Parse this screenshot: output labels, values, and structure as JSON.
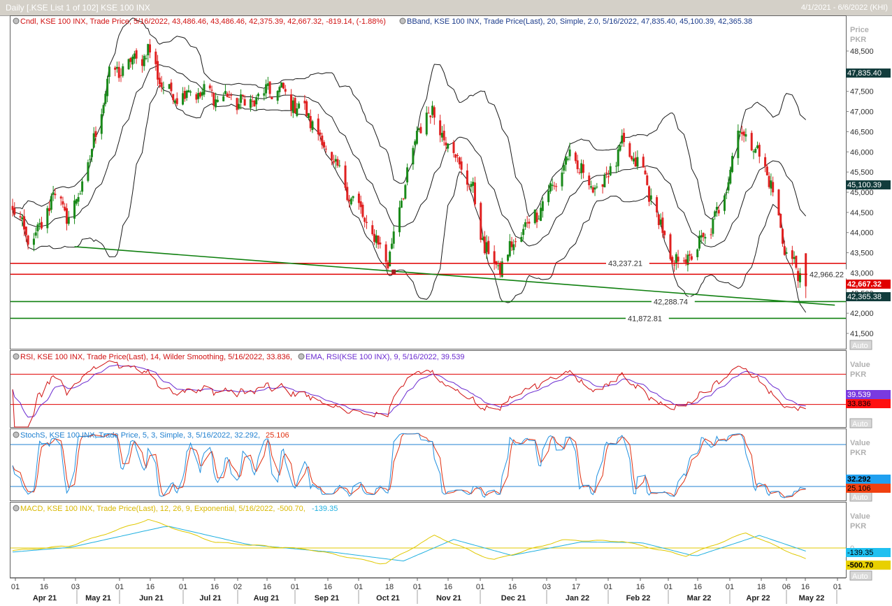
{
  "window": {
    "title": "Daily [.KSE List 1 of 102] KSE 100 INX",
    "date_range": "4/1/2021 - 6/6/2022 (KHI)"
  },
  "panels": {
    "price": {
      "legend_cndl": "Cndl, KSE 100 INX, Trade Price, 5/16/2022, 43,486.46, 43,486.46, 42,375.39, 42,667.32, -819.14, (-1.88%)",
      "legend_bband": "BBand, KSE 100 INX, Trade Price(Last), 20, Simple, 2.0, 5/16/2022, 47,835.40, 45,100.39, 42,365.38",
      "axis_title": "Price",
      "axis_unit": "PKR",
      "auto": "Auto",
      "price_ticks": [
        "48,500",
        "48,000",
        "47,500",
        "47,000",
        "46,500",
        "46,000",
        "45,500",
        "45,000",
        "44,500",
        "44,000",
        "43,500",
        "43,000",
        "42,500",
        "42,000",
        "41,500"
      ],
      "tick_values": [
        48500,
        48000,
        47500,
        47000,
        46500,
        46000,
        45500,
        45000,
        44500,
        44000,
        43500,
        43000,
        42500,
        42000,
        41500
      ],
      "badges": {
        "upper": "47,835.40",
        "middle": "45,100.39",
        "last": "42,667.32",
        "lower": "42,365.38"
      },
      "hline_labels": {
        "l1": "43,237.21",
        "l2": "42,966.22",
        "l3": "42,288.74",
        "l4": "41,872.81"
      }
    },
    "rsi": {
      "legend_rsi": "RSI, KSE 100 INX, Trade Price(Last),  14, Wilder Smoothing,  5/16/2022, 33.836,",
      "legend_ema": "EMA, RSI(KSE 100 INX),  9,  5/16/2022, 39.539",
      "axis_title": "Value",
      "axis_unit": "PKR",
      "auto": "Auto",
      "badge_ema": "39.539",
      "badge_rsi": "33.836"
    },
    "stoch": {
      "legend": "StochS, KSE 100 INX, Trade Price,  5, 3, Simple, 3,  5/16/2022, 32.292,",
      "legend_d": "25.106",
      "axis_title": "Value",
      "axis_unit": "PKR",
      "auto": "Auto",
      "badge_k": "32.292",
      "badge_d": "25.106"
    },
    "macd": {
      "legend": "MACD, KSE 100 INX, Trade Price(Last),  12, 26, 9, Exponential,  5/16/2022, -500.70,",
      "legend_signal": "-139.35",
      "axis_title": "Value",
      "axis_unit": "PKR",
      "auto": "Auto",
      "zero": "0",
      "badge_signal": "-139.35",
      "badge_macd": "-500.70"
    }
  },
  "xaxis": {
    "day_ticks": [
      "01",
      "16",
      "03",
      "01",
      "16",
      "01",
      "16",
      "01",
      "16",
      "02",
      "16",
      "01",
      "16",
      "01",
      "18",
      "01",
      "16",
      "01",
      "16",
      "03",
      "17",
      "01",
      "16",
      "01",
      "16",
      "01",
      "18",
      "06",
      "16",
      "01"
    ],
    "months": [
      "Apr 21",
      "May 21",
      "Jun 21",
      "Jul 21",
      "Aug 21",
      "Sep 21",
      "Oct 21",
      "Nov 21",
      "Dec 21",
      "Jan 22",
      "Feb 22",
      "Mar 22",
      "Apr 22",
      "May 22"
    ]
  },
  "colors": {
    "up": "#1a8a1a",
    "down": "#e02020",
    "bband": "#1a1a1a",
    "rsi": "#d01010",
    "rsi_ema": "#6a2ad0",
    "stoch_k": "#2090e0",
    "stoch_d": "#e03010",
    "macd": "#e0c800",
    "macd_signal": "#20b0e0",
    "hline_red": "#e00000",
    "hline_green": "#108010"
  },
  "chart_data": [
    {
      "type": "candlestick",
      "title": "",
      "ylabel": "Price PKR",
      "ylim": [
        41300,
        48800
      ],
      "anchors": [
        {
          "date": "4/1/2021",
          "close": 44500
        },
        {
          "date": "4/12/2021",
          "close": 43700
        },
        {
          "date": "4/22/2021",
          "close": 45000
        },
        {
          "date": "5/1/2021",
          "close": 44300
        },
        {
          "date": "5/12/2021",
          "close": 46000
        },
        {
          "date": "5/20/2021",
          "close": 47800
        },
        {
          "date": "6/1/2021",
          "close": 48200
        },
        {
          "date": "6/10/2021",
          "close": 48500
        },
        {
          "date": "6/20/2021",
          "close": 47400
        },
        {
          "date": "7/1/2021",
          "close": 47500
        },
        {
          "date": "7/15/2021",
          "close": 47400
        },
        {
          "date": "8/1/2021",
          "close": 47200
        },
        {
          "date": "8/15/2021",
          "close": 47600
        },
        {
          "date": "9/1/2021",
          "close": 46900
        },
        {
          "date": "9/15/2021",
          "close": 45600
        },
        {
          "date": "10/1/2021",
          "close": 44200
        },
        {
          "date": "10/12/2021",
          "close": 43300
        },
        {
          "date": "10/22/2021",
          "close": 45500
        },
        {
          "date": "11/1/2021",
          "close": 47100
        },
        {
          "date": "11/12/2021",
          "close": 46300
        },
        {
          "date": "11/25/2021",
          "close": 45000
        },
        {
          "date": "12/1/2021",
          "close": 43600
        },
        {
          "date": "12/8/2021",
          "close": 43100
        },
        {
          "date": "12/20/2021",
          "close": 44000
        },
        {
          "date": "1/1/2022",
          "close": 44800
        },
        {
          "date": "1/14/2022",
          "close": 45900
        },
        {
          "date": "1/28/2022",
          "close": 45000
        },
        {
          "date": "2/10/2022",
          "close": 46100
        },
        {
          "date": "2/20/2022",
          "close": 45600
        },
        {
          "date": "3/1/2022",
          "close": 44300
        },
        {
          "date": "3/8/2022",
          "close": 43200
        },
        {
          "date": "3/20/2022",
          "close": 43500
        },
        {
          "date": "4/1/2022",
          "close": 44500
        },
        {
          "date": "4/12/2022",
          "close": 46600
        },
        {
          "date": "4/25/2022",
          "close": 45700
        },
        {
          "date": "5/6/2022",
          "close": 43500
        },
        {
          "date": "5/16/2022",
          "close": 42667.32
        }
      ],
      "last_bar": {
        "date": "5/16/2022",
        "open": 43486.46,
        "high": 43486.46,
        "low": 42375.39,
        "close": 42667.32,
        "change": -819.14,
        "change_pct": -1.88
      },
      "bbands": {
        "period": 20,
        "std": 2.0,
        "upper": 47835.4,
        "middle": 45100.39,
        "lower": 42365.38
      },
      "horizontal_lines": [
        43237.21,
        42966.22,
        42288.74,
        41872.81
      ],
      "trendline": [
        {
          "date": "5/3/2021",
          "value": 43650
        },
        {
          "date": "5/31/2022",
          "value": 42200
        }
      ]
    },
    {
      "type": "line",
      "title": "",
      "ylim": [
        0,
        100
      ],
      "reference_levels": [
        70,
        30
      ],
      "series": [
        {
          "name": "RSI",
          "last": 33.836
        },
        {
          "name": "EMA",
          "last": 39.539
        }
      ]
    },
    {
      "type": "line",
      "title": "",
      "ylim": [
        0,
        100
      ],
      "reference_levels": [
        80,
        20
      ],
      "series": [
        {
          "name": "StochS",
          "last": 32.292
        },
        {
          "name": "",
          "last": 25.106
        }
      ]
    },
    {
      "type": "line",
      "title": "",
      "ylim": [
        -800,
        1400
      ],
      "series": [
        {
          "name": "MACD",
          "last": -500.7,
          "anchors": [
            {
              "date": "4/1/2021",
              "value": -120
            },
            {
              "date": "5/1/2021",
              "value": 100
            },
            {
              "date": "6/10/2021",
              "value": 1270
            },
            {
              "date": "7/15/2021",
              "value": 250
            },
            {
              "date": "9/1/2021",
              "value": -60
            },
            {
              "date": "10/10/2021",
              "value": -720
            },
            {
              "date": "11/5/2021",
              "value": 560
            },
            {
              "date": "12/5/2021",
              "value": -540
            },
            {
              "date": "1/10/2022",
              "value": 350
            },
            {
              "date": "2/10/2022",
              "value": 300
            },
            {
              "date": "3/15/2022",
              "value": -350
            },
            {
              "date": "4/15/2022",
              "value": 680
            },
            {
              "date": "5/16/2022",
              "value": -500.7
            }
          ]
        },
        {
          "name": "",
          "last": -139.35,
          "anchors": [
            {
              "date": "4/1/2021",
              "value": -180
            },
            {
              "date": "5/1/2021",
              "value": 30
            },
            {
              "date": "6/20/2021",
              "value": 980
            },
            {
              "date": "8/1/2021",
              "value": 150
            },
            {
              "date": "9/15/2021",
              "value": -200
            },
            {
              "date": "10/20/2021",
              "value": -580
            },
            {
              "date": "11/15/2021",
              "value": 380
            },
            {
              "date": "12/15/2021",
              "value": -330
            },
            {
              "date": "1/20/2022",
              "value": 270
            },
            {
              "date": "2/20/2022",
              "value": 240
            },
            {
              "date": "3/20/2022",
              "value": -370
            },
            {
              "date": "4/22/2022",
              "value": 560
            },
            {
              "date": "5/16/2022",
              "value": -139.35
            }
          ]
        }
      ]
    }
  ]
}
